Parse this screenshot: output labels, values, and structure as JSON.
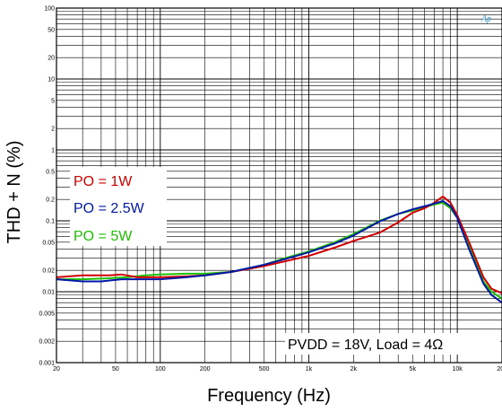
{
  "colors": {
    "po_1w": "#d00000",
    "po_2_5w": "#0018a8",
    "po_5w": "#1ec000",
    "grid": "#000000",
    "logo": "#3399cc"
  },
  "logo_text": "Ap",
  "chart_data": {
    "type": "line",
    "xlabel": "Frequency (Hz)",
    "ylabel": "THD + N (%)",
    "x_scale": "log",
    "y_scale": "log",
    "xlim": [
      20,
      20000
    ],
    "ylim": [
      0.001,
      100
    ],
    "grid": true,
    "legend_position": "left",
    "x_ticks": [
      {
        "v": 20,
        "label": "20"
      },
      {
        "v": 50,
        "label": "50"
      },
      {
        "v": 100,
        "label": "100"
      },
      {
        "v": 200,
        "label": "200"
      },
      {
        "v": 500,
        "label": "500"
      },
      {
        "v": 1000,
        "label": "1k"
      },
      {
        "v": 2000,
        "label": "2k"
      },
      {
        "v": 5000,
        "label": "5k"
      },
      {
        "v": 10000,
        "label": "10k"
      },
      {
        "v": 20000,
        "label": "20k"
      }
    ],
    "y_ticks": [
      {
        "v": 100,
        "label": "100"
      },
      {
        "v": 50,
        "label": "50"
      },
      {
        "v": 20,
        "label": "20"
      },
      {
        "v": 10,
        "label": "10"
      },
      {
        "v": 5,
        "label": "5"
      },
      {
        "v": 2,
        "label": "2"
      },
      {
        "v": 1,
        "label": "1"
      },
      {
        "v": 0.5,
        "label": "0.5"
      },
      {
        "v": 0.2,
        "label": "0.2"
      },
      {
        "v": 0.1,
        "label": "0.1"
      },
      {
        "v": 0.05,
        "label": "0.05"
      },
      {
        "v": 0.02,
        "label": "0.02"
      },
      {
        "v": 0.01,
        "label": "0.01"
      },
      {
        "v": 0.005,
        "label": "0.005"
      },
      {
        "v": 0.002,
        "label": "0.002"
      },
      {
        "v": 0.001,
        "label": "0.001"
      }
    ],
    "series": [
      {
        "name": "PO = 1W",
        "color": "#d00000",
        "points": [
          [
            20,
            0.016
          ],
          [
            30,
            0.017
          ],
          [
            45,
            0.017
          ],
          [
            55,
            0.0175
          ],
          [
            70,
            0.016
          ],
          [
            100,
            0.016
          ],
          [
            150,
            0.0165
          ],
          [
            200,
            0.017
          ],
          [
            300,
            0.019
          ],
          [
            500,
            0.023
          ],
          [
            700,
            0.027
          ],
          [
            1000,
            0.032
          ],
          [
            1500,
            0.042
          ],
          [
            2000,
            0.052
          ],
          [
            3000,
            0.068
          ],
          [
            4000,
            0.095
          ],
          [
            5000,
            0.13
          ],
          [
            6000,
            0.15
          ],
          [
            7000,
            0.18
          ],
          [
            8000,
            0.22
          ],
          [
            9000,
            0.18
          ],
          [
            10000,
            0.12
          ],
          [
            12000,
            0.05
          ],
          [
            15000,
            0.016
          ],
          [
            17000,
            0.011
          ],
          [
            20000,
            0.0095
          ]
        ]
      },
      {
        "name": "PO = 2.5W",
        "color": "#0018a8",
        "points": [
          [
            20,
            0.015
          ],
          [
            30,
            0.014
          ],
          [
            40,
            0.014
          ],
          [
            55,
            0.015
          ],
          [
            70,
            0.015
          ],
          [
            100,
            0.015
          ],
          [
            150,
            0.016
          ],
          [
            200,
            0.017
          ],
          [
            300,
            0.019
          ],
          [
            500,
            0.024
          ],
          [
            700,
            0.029
          ],
          [
            1000,
            0.036
          ],
          [
            1500,
            0.048
          ],
          [
            2000,
            0.062
          ],
          [
            3000,
            0.098
          ],
          [
            4000,
            0.125
          ],
          [
            5000,
            0.145
          ],
          [
            6000,
            0.16
          ],
          [
            7000,
            0.175
          ],
          [
            8000,
            0.19
          ],
          [
            9000,
            0.16
          ],
          [
            10000,
            0.11
          ],
          [
            12000,
            0.04
          ],
          [
            15000,
            0.013
          ],
          [
            17000,
            0.009
          ],
          [
            20000,
            0.007
          ]
        ]
      },
      {
        "name": "PO = 5W",
        "color": "#1ec000",
        "points": [
          [
            20,
            0.015
          ],
          [
            30,
            0.015
          ],
          [
            45,
            0.0155
          ],
          [
            60,
            0.016
          ],
          [
            80,
            0.017
          ],
          [
            100,
            0.0175
          ],
          [
            150,
            0.018
          ],
          [
            200,
            0.018
          ],
          [
            300,
            0.019
          ],
          [
            500,
            0.024
          ],
          [
            700,
            0.03
          ],
          [
            1000,
            0.037
          ],
          [
            1500,
            0.05
          ],
          [
            2000,
            0.065
          ],
          [
            3000,
            0.1
          ],
          [
            4000,
            0.125
          ],
          [
            5000,
            0.14
          ],
          [
            6000,
            0.155
          ],
          [
            7000,
            0.17
          ],
          [
            8000,
            0.18
          ],
          [
            9000,
            0.15
          ],
          [
            10000,
            0.11
          ],
          [
            12000,
            0.045
          ],
          [
            15000,
            0.014
          ],
          [
            17000,
            0.01
          ],
          [
            20000,
            0.008
          ]
        ]
      }
    ],
    "annotation": "PVDD = 18V, Load = 4Ω"
  }
}
